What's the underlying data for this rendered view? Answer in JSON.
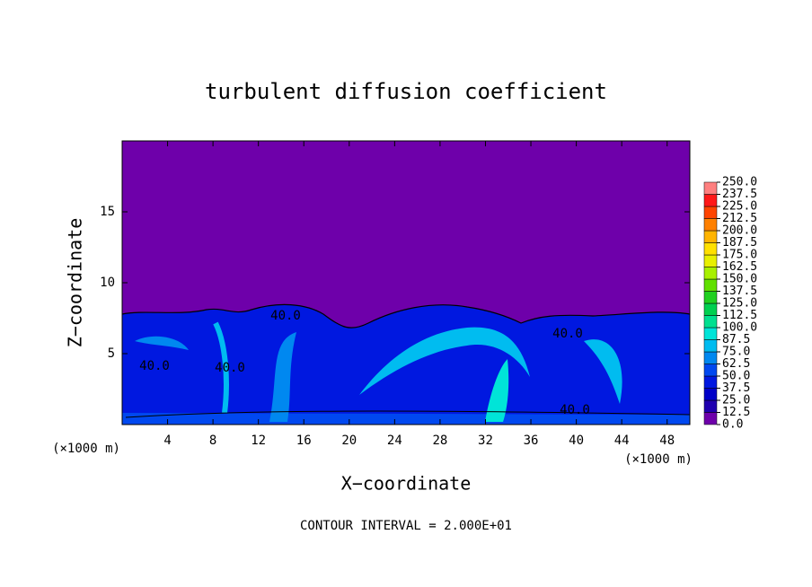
{
  "chart_data": {
    "type": "contour",
    "title": "turbulent diffusion coefficient",
    "x_label": "X−coordinate",
    "y_label": "Z−coordinate",
    "x_unit_label": "(×1000 m)",
    "y_unit_label": "(×1000 m)",
    "footnote": "CONTOUR INTERVAL = 2.000E+01",
    "xlim": [
      0,
      50
    ],
    "xticks": [
      4,
      8,
      12,
      16,
      20,
      24,
      28,
      32,
      36,
      40,
      44,
      48
    ],
    "ylim": [
      0,
      20
    ],
    "yticks": [
      5,
      10,
      15
    ],
    "contour_labels": [
      "40.0",
      "40.0",
      "40.0",
      "40.0",
      "40.0"
    ],
    "colorbar": {
      "levels": [
        {
          "value": 0,
          "label": "0.0"
        },
        {
          "value": 12.5,
          "label": "12.5"
        },
        {
          "value": 25,
          "label": "25.0"
        },
        {
          "value": 37.5,
          "label": "37.5"
        },
        {
          "value": 50,
          "label": "50.0"
        },
        {
          "value": 62.5,
          "label": "62.5"
        },
        {
          "value": 75,
          "label": "75.0"
        },
        {
          "value": 87.5,
          "label": "87.5"
        },
        {
          "value": 100,
          "label": "100.0"
        },
        {
          "value": 112.5,
          "label": "112.5"
        },
        {
          "value": 125,
          "label": "125.0"
        },
        {
          "value": 137.5,
          "label": "137.5"
        },
        {
          "value": 150,
          "label": "150.0"
        },
        {
          "value": 162.5,
          "label": "162.5"
        },
        {
          "value": 175,
          "label": "175.0"
        },
        {
          "value": 187.5,
          "label": "187.5"
        },
        {
          "value": 200,
          "label": "200.0"
        },
        {
          "value": 212.5,
          "label": "212.5"
        },
        {
          "value": 225,
          "label": "225.0"
        },
        {
          "value": 237.5,
          "label": "237.5"
        },
        {
          "value": 250,
          "label": "250.0"
        }
      ],
      "colors": [
        "#6e00aa",
        "#2000b0",
        "#0000c8",
        "#0018e0",
        "#0048f0",
        "#0088f0",
        "#00bcf0",
        "#00e4d8",
        "#00e090",
        "#00d050",
        "#20d020",
        "#60e000",
        "#a8f000",
        "#e8f000",
        "#ffe000",
        "#ffb400",
        "#ff8000",
        "#ff4400",
        "#ff1818",
        "#ff8080"
      ]
    }
  }
}
